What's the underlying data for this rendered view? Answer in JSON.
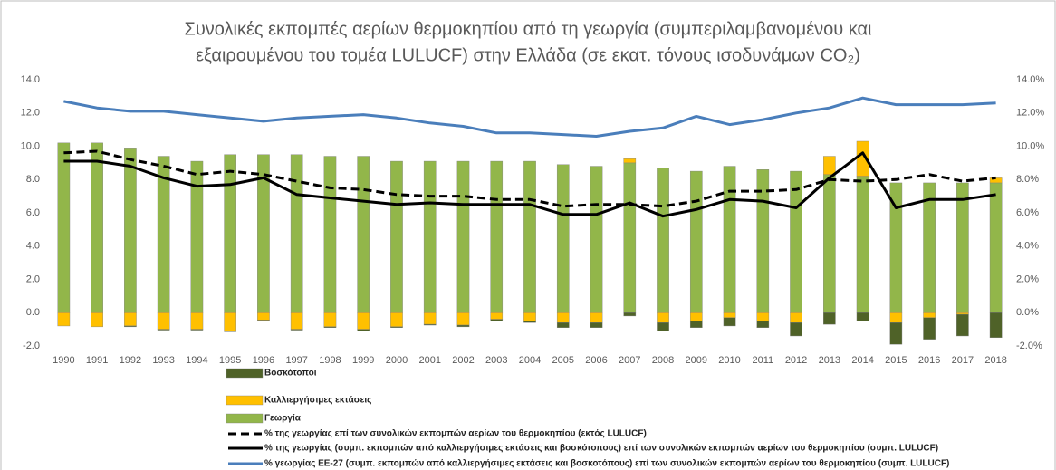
{
  "chart_data": {
    "type": "bar",
    "title": [
      "Συνολικές εκπομπές αερίων θερμοκηπίου από τη γεωργία (συμπεριλαμβανομένου και",
      "εξαιρουμένου του τομέα LULUCF) στην Ελλάδα (σε εκατ. τόνους ισοδυνάμων CO₂)"
    ],
    "categories": [
      "1990",
      "1991",
      "1992",
      "1993",
      "1994",
      "1995",
      "1996",
      "1997",
      "1998",
      "1999",
      "2000",
      "2001",
      "2002",
      "2003",
      "2004",
      "2005",
      "2006",
      "2007",
      "2008",
      "2009",
      "2010",
      "2011",
      "2012",
      "2013",
      "2014",
      "2015",
      "2016",
      "2017",
      "2018"
    ],
    "ylim": [
      -2,
      14
    ],
    "yticks": [
      {
        "value": -2,
        "label": "-2.0"
      },
      {
        "value": 0,
        "label": "0.0"
      },
      {
        "value": 2,
        "label": "2.0"
      },
      {
        "value": 4,
        "label": "4.0"
      },
      {
        "value": 6,
        "label": "6.0"
      },
      {
        "value": 8,
        "label": "8.0"
      },
      {
        "value": 10,
        "label": "10.0"
      },
      {
        "value": 12,
        "label": "12.0"
      },
      {
        "value": 14,
        "label": "14.0"
      }
    ],
    "y2lim": [
      -2,
      14
    ],
    "y2ticks": [
      {
        "value": -2,
        "label": "-2.0%"
      },
      {
        "value": 0,
        "label": "0.0%"
      },
      {
        "value": 2,
        "label": "2.0%"
      },
      {
        "value": 4,
        "label": "4.0%"
      },
      {
        "value": 6,
        "label": "6.0%"
      },
      {
        "value": 8,
        "label": "8.0%"
      },
      {
        "value": 10,
        "label": "10.0%"
      },
      {
        "value": 12,
        "label": "12.0%"
      },
      {
        "value": 14,
        "label": "14.0%"
      }
    ],
    "grid": false,
    "series": [
      {
        "name": "Βοσκότοποι",
        "color": "#4f6228",
        "kind": "bar",
        "values": [
          0,
          0,
          -0.05,
          -0.05,
          -0.05,
          -0.05,
          -0.05,
          -0.05,
          -0.05,
          -0.1,
          -0.05,
          -0.05,
          -0.1,
          -0.1,
          -0.1,
          -0.3,
          -0.3,
          -0.2,
          -0.5,
          -0.4,
          -0.5,
          -0.4,
          -0.8,
          -0.7,
          -0.5,
          -1.3,
          -1.3,
          -1.3,
          -1.5
        ]
      },
      {
        "name": "Καλλιεργήσιμες εκτάσεις",
        "color": "#ffc000",
        "kind": "bar",
        "values": [
          -0.8,
          -0.85,
          -0.8,
          -1.0,
          -1.0,
          -1.1,
          -0.45,
          -1.0,
          -0.85,
          -1.0,
          -0.85,
          -0.7,
          -0.75,
          -0.4,
          -0.5,
          -0.6,
          -0.6,
          0.25,
          -0.6,
          -0.5,
          -0.3,
          -0.5,
          -0.6,
          1.1,
          2.1,
          -0.6,
          -0.3,
          -0.1,
          0.3
        ]
      },
      {
        "name": "Γεωργία",
        "color": "#92b64a",
        "kind": "bar",
        "values": [
          10.2,
          10.2,
          9.9,
          9.4,
          9.1,
          9.5,
          9.5,
          9.5,
          9.4,
          9.4,
          9.1,
          9.1,
          9.1,
          9.1,
          9.1,
          8.9,
          8.8,
          9.0,
          8.7,
          8.5,
          8.8,
          8.6,
          8.5,
          8.3,
          8.2,
          7.8,
          7.8,
          7.8,
          7.8
        ]
      },
      {
        "name": "% της γεωργίας επί των συνολικών εκπομπών αερίων του θερμοκηπίου (εκτός LULUCF)",
        "color": "#000000",
        "kind": "line",
        "axis": "y2",
        "linestyle": "dashed",
        "values": [
          9.6,
          9.7,
          9.2,
          8.8,
          8.3,
          8.5,
          8.3,
          7.9,
          7.5,
          7.4,
          7.1,
          7.0,
          7.0,
          6.8,
          6.8,
          6.4,
          6.5,
          6.5,
          6.4,
          6.7,
          7.3,
          7.3,
          7.4,
          8.0,
          7.9,
          8.0,
          8.3,
          7.9,
          8.1
        ]
      },
      {
        "name": "% της γεωργίας (συμπ. εκπομπών από καλλιεργήσιμες εκτάσεις και βοσκότοπους) επί των συνολικών εκπομπών αερίων του θερμοκηπίου (συμπ. LULUCF)",
        "color": "#000000",
        "kind": "line",
        "axis": "y2",
        "linestyle": "solid",
        "values": [
          9.1,
          9.1,
          8.8,
          8.1,
          7.6,
          7.7,
          8.1,
          7.1,
          6.9,
          6.7,
          6.5,
          6.6,
          6.5,
          6.5,
          6.5,
          5.9,
          5.9,
          6.6,
          5.8,
          6.2,
          6.8,
          6.7,
          6.3,
          8.1,
          9.6,
          6.3,
          6.8,
          6.8,
          7.1
        ]
      },
      {
        "name": "% γεωργίας ΕΕ-27 (συμπ. εκπομπών από καλλιεργήσιμες εκτάσεις και βοσκοτόπους) επί των συνολικών εκπομπών αερίων του θερμοκηπίου (συμπ. LULUCF)",
        "color": "#4a7ebb",
        "kind": "line",
        "axis": "y2",
        "linestyle": "solid",
        "values": [
          12.7,
          12.3,
          12.1,
          12.1,
          11.9,
          11.7,
          11.5,
          11.7,
          11.8,
          11.9,
          11.7,
          11.4,
          11.2,
          10.8,
          10.8,
          10.7,
          10.6,
          10.9,
          11.1,
          11.8,
          11.3,
          11.6,
          12.0,
          12.3,
          12.9,
          12.5,
          12.5,
          12.5,
          12.6
        ]
      }
    ]
  }
}
